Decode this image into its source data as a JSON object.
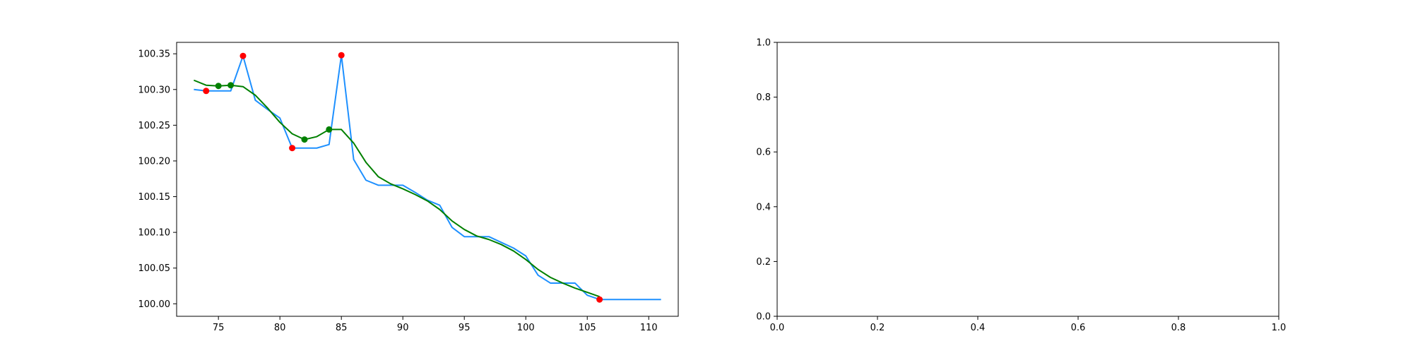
{
  "chart_data": [
    {
      "type": "line",
      "title": "",
      "xlabel": "",
      "ylabel": "",
      "xlim": [
        71.6,
        112.4
      ],
      "ylim": [
        99.9825,
        100.366
      ],
      "xticks": [
        75,
        80,
        85,
        90,
        95,
        100,
        105,
        110
      ],
      "yticks": [
        100.0,
        100.05,
        100.1,
        100.15,
        100.2,
        100.25,
        100.3,
        100.35
      ],
      "ytick_decimals": 2,
      "grid": false,
      "legend": null,
      "series": [
        {
          "kind": "line",
          "color": "#1e90ff",
          "x": [
            73,
            74,
            75,
            76,
            77,
            78,
            79,
            80,
            81,
            82,
            83,
            84,
            85,
            86,
            87,
            88,
            89,
            90,
            91,
            92,
            93,
            94,
            95,
            96,
            97,
            98,
            99,
            100,
            101,
            102,
            103,
            104,
            105,
            106,
            107,
            108,
            109,
            110,
            111
          ],
          "y": [
            100.3,
            100.298,
            100.298,
            100.298,
            100.347,
            100.285,
            100.272,
            100.26,
            100.218,
            100.218,
            100.218,
            100.223,
            100.348,
            100.202,
            100.173,
            100.166,
            100.166,
            100.166,
            100.156,
            100.145,
            100.138,
            100.107,
            100.094,
            100.094,
            100.094,
            100.086,
            100.078,
            100.067,
            100.04,
            100.029,
            100.029,
            100.029,
            100.012,
            100.006,
            100.006,
            100.006,
            100.006,
            100.006,
            100.006
          ]
        },
        {
          "kind": "line",
          "color": "#008000",
          "x": [
            73,
            74,
            75,
            76,
            77,
            78,
            79,
            80,
            81,
            82,
            83,
            84,
            85,
            86,
            87,
            88,
            89,
            90,
            91,
            92,
            93,
            94,
            95,
            96,
            97,
            98,
            99,
            100,
            101,
            102,
            103,
            104,
            105,
            106
          ],
          "y": [
            100.313,
            100.306,
            100.305,
            100.306,
            100.304,
            100.292,
            100.274,
            100.254,
            100.238,
            100.23,
            100.234,
            100.244,
            100.244,
            100.225,
            100.198,
            100.178,
            100.168,
            100.161,
            100.153,
            100.144,
            100.132,
            100.116,
            100.104,
            100.095,
            100.09,
            100.083,
            100.074,
            100.062,
            100.048,
            100.037,
            100.029,
            100.022,
            100.016,
            100.01
          ]
        },
        {
          "kind": "scatter",
          "color": "#ff0000",
          "x": [
            74,
            77,
            81,
            85,
            106
          ],
          "y": [
            100.298,
            100.347,
            100.218,
            100.348,
            100.006
          ]
        },
        {
          "kind": "scatter",
          "color": "#008000",
          "x": [
            75,
            76,
            82,
            84
          ],
          "y": [
            100.305,
            100.306,
            100.23,
            100.244
          ]
        }
      ]
    },
    {
      "type": "line",
      "title": "",
      "xlabel": "",
      "ylabel": "",
      "xlim": [
        0,
        1
      ],
      "ylim": [
        0,
        1
      ],
      "xticks": [
        0.0,
        0.2,
        0.4,
        0.6,
        0.8,
        1.0
      ],
      "yticks": [
        0.0,
        0.2,
        0.4,
        0.6,
        0.8,
        1.0
      ],
      "xtick_decimals": 1,
      "ytick_decimals": 1,
      "grid": false,
      "legend": null,
      "series": []
    }
  ]
}
